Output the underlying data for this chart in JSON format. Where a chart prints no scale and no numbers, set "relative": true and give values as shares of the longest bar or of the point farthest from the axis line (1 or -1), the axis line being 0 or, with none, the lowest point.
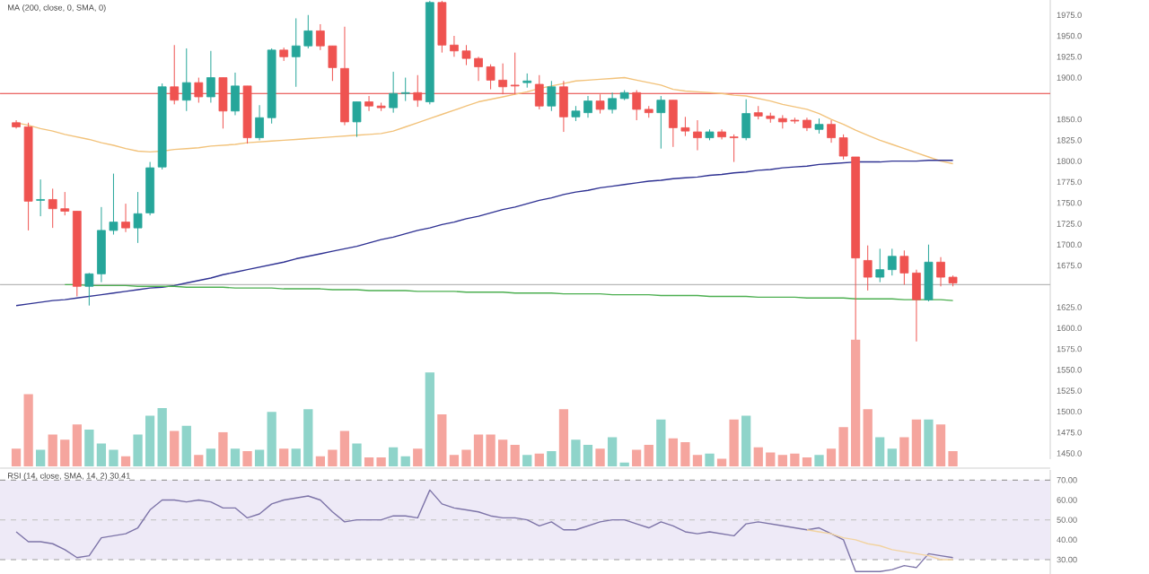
{
  "chart_data": [
    {
      "type": "candlestick",
      "title": "MA (200, close, 0, SMA, 0)",
      "tick_labels": "y",
      "categories": [
        null,
        null,
        null,
        null,
        null,
        null,
        null,
        null,
        null,
        null,
        null,
        null,
        null,
        null,
        null,
        null,
        null,
        null,
        null,
        null,
        null,
        null,
        null,
        null,
        null,
        null,
        null,
        null,
        null,
        null,
        null,
        null,
        null,
        null,
        null,
        null,
        null,
        null,
        null,
        null,
        null,
        null,
        null,
        null,
        null,
        null,
        null,
        null,
        null,
        null,
        null,
        null,
        null,
        null,
        null,
        null,
        null,
        null,
        null,
        null,
        null,
        null,
        null,
        null,
        null,
        null,
        null,
        null,
        null,
        null,
        null,
        null,
        null,
        null,
        null,
        null,
        null,
        null
      ],
      "ohlc": [
        [
          1846,
          1849,
          1839,
          1841
        ],
        [
          1841,
          1846,
          1717,
          1752
        ],
        [
          1753,
          1778,
          1734,
          1754
        ],
        [
          1754,
          1767,
          1720,
          1743
        ],
        [
          1743,
          1763,
          1735,
          1740
        ],
        [
          1740,
          1740,
          1638,
          1650
        ],
        [
          1650,
          1666,
          1627,
          1665
        ],
        [
          1665,
          1745,
          1655,
          1717
        ],
        [
          1717,
          1785,
          1712,
          1727
        ],
        [
          1727,
          1749,
          1715,
          1720
        ],
        [
          1720,
          1763,
          1702,
          1737
        ],
        [
          1738,
          1799,
          1735,
          1792
        ],
        [
          1793,
          1893,
          1790,
          1889
        ],
        [
          1889,
          1939,
          1868,
          1873
        ],
        [
          1873,
          1935,
          1860,
          1894
        ],
        [
          1894,
          1900,
          1870,
          1877
        ],
        [
          1877,
          1932,
          1870,
          1900
        ],
        [
          1900,
          1900,
          1839,
          1860
        ],
        [
          1860,
          1906,
          1855,
          1890
        ],
        [
          1890,
          1890,
          1821,
          1828
        ],
        [
          1828,
          1867,
          1825,
          1852
        ],
        [
          1852,
          1935,
          1845,
          1933
        ],
        [
          1933,
          1936,
          1920,
          1925
        ],
        [
          1925,
          1971,
          1889,
          1938
        ],
        [
          1938,
          1975,
          1935,
          1956
        ],
        [
          1956,
          1964,
          1933,
          1938
        ],
        [
          1938,
          1938,
          1896,
          1912
        ],
        [
          1911,
          1961,
          1843,
          1847
        ],
        [
          1847,
          1871,
          1829,
          1871
        ],
        [
          1871,
          1878,
          1860,
          1866
        ],
        [
          1866,
          1870,
          1860,
          1864
        ],
        [
          1864,
          1907,
          1858,
          1881
        ],
        [
          1881,
          1900,
          1872,
          1882
        ],
        [
          1882,
          1903,
          1865,
          1873
        ],
        [
          1871,
          1992,
          1868,
          1990
        ],
        [
          1990,
          1992,
          1930,
          1939
        ],
        [
          1939,
          1950,
          1925,
          1932
        ],
        [
          1932,
          1939,
          1915,
          1923
        ],
        [
          1923,
          1925,
          1896,
          1913
        ],
        [
          1913,
          1916,
          1886,
          1897
        ],
        [
          1897,
          1917,
          1880,
          1889
        ],
        [
          1891,
          1930,
          1880,
          1890
        ],
        [
          1894,
          1905,
          1888,
          1896
        ],
        [
          1892,
          1903,
          1862,
          1866
        ],
        [
          1866,
          1896,
          1860,
          1889
        ],
        [
          1889,
          1896,
          1835,
          1853
        ],
        [
          1853,
          1866,
          1848,
          1860
        ],
        [
          1858,
          1878,
          1852,
          1872
        ],
        [
          1872,
          1880,
          1857,
          1862
        ],
        [
          1862,
          1882,
          1857,
          1875
        ],
        [
          1875,
          1885,
          1873,
          1882
        ],
        [
          1882,
          1885,
          1849,
          1862
        ],
        [
          1862,
          1866,
          1852,
          1858
        ],
        [
          1858,
          1878,
          1815,
          1873
        ],
        [
          1873,
          1873,
          1817,
          1840
        ],
        [
          1840,
          1853,
          1830,
          1836
        ],
        [
          1835,
          1849,
          1813,
          1828
        ],
        [
          1828,
          1838,
          1825,
          1835
        ],
        [
          1835,
          1838,
          1826,
          1829
        ],
        [
          1829,
          1832,
          1799,
          1828
        ],
        [
          1828,
          1874,
          1825,
          1857
        ],
        [
          1858,
          1866,
          1850,
          1854
        ],
        [
          1854,
          1858,
          1846,
          1851
        ],
        [
          1851,
          1855,
          1839,
          1847
        ],
        [
          1849,
          1852,
          1845,
          1848
        ],
        [
          1849,
          1852,
          1836,
          1840
        ],
        [
          1838,
          1851,
          1833,
          1844
        ],
        [
          1844,
          1849,
          1822,
          1828
        ],
        [
          1828,
          1832,
          1802,
          1806
        ],
        [
          1805,
          1805,
          1580,
          1684
        ],
        [
          1681,
          1699,
          1645,
          1661
        ],
        [
          1661,
          1695,
          1655,
          1670
        ],
        [
          1670,
          1695,
          1663,
          1686
        ],
        [
          1686,
          1693,
          1652,
          1666
        ],
        [
          1666,
          1670,
          1584,
          1634
        ],
        [
          1634,
          1700,
          1632,
          1679
        ],
        [
          1679,
          1685,
          1650,
          1661
        ],
        [
          1661,
          1663,
          1650,
          1654
        ]
      ],
      "ylim": [
        1443,
        1993
      ],
      "yticks": [
        {
          "value": 1450,
          "label": "1450.0"
        },
        {
          "value": 1475,
          "label": "1475.0"
        },
        {
          "value": 1500,
          "label": "1500.0"
        },
        {
          "value": 1525,
          "label": "1525.0"
        },
        {
          "value": 1550,
          "label": "1550.0"
        },
        {
          "value": 1575,
          "label": "1575.0"
        },
        {
          "value": 1600,
          "label": "1600.0"
        },
        {
          "value": 1625,
          "label": "1625.0"
        },
        {
          "value": 1675,
          "label": "1675.0"
        },
        {
          "value": 1700,
          "label": "1700.0"
        },
        {
          "value": 1725,
          "label": "1725.0"
        },
        {
          "value": 1750,
          "label": "1750.0"
        },
        {
          "value": 1775,
          "label": "1775.0"
        },
        {
          "value": 1800,
          "label": "1800.0"
        },
        {
          "value": 1825,
          "label": "1825.0"
        },
        {
          "value": 1850,
          "label": "1850.0"
        },
        {
          "value": 1900,
          "label": "1900.0"
        },
        {
          "value": 1925,
          "label": "1925.0"
        },
        {
          "value": 1950,
          "label": "1950.0"
        },
        {
          "value": 1975,
          "label": "1975.0"
        }
      ],
      "series": [
        {
          "type": "line",
          "color": "#f2c27a",
          "values": [
            1846,
            1843,
            1839,
            1836,
            1832,
            1829,
            1826,
            1822,
            1819,
            1815,
            1812,
            1811,
            1812,
            1814,
            1815,
            1816,
            1818,
            1819,
            1820,
            1822,
            1823,
            1824,
            1825,
            1826,
            1827,
            1828,
            1829,
            1830,
            1831,
            1832,
            1833,
            1836,
            1841,
            1846,
            1851,
            1856,
            1861,
            1866,
            1871,
            1874,
            1877,
            1880,
            1883,
            1887,
            1890,
            1893,
            1896,
            1897,
            1898,
            1899,
            1900,
            1897,
            1894,
            1891,
            1886,
            1884,
            1883,
            1882,
            1881,
            1879,
            1878,
            1875,
            1872,
            1868,
            1865,
            1862,
            1857,
            1850,
            1844,
            1837,
            1831,
            1825,
            1820,
            1815,
            1810,
            1805,
            1800,
            1797
          ]
        },
        {
          "type": "line",
          "color": "#2e3192",
          "values": [
            1627,
            1629,
            1631,
            1633,
            1634,
            1636,
            1638,
            1640,
            1642,
            1644,
            1646,
            1648,
            1649,
            1651,
            1654,
            1657,
            1660,
            1664,
            1667,
            1670,
            1673,
            1676,
            1679,
            1683,
            1686,
            1689,
            1692,
            1695,
            1698,
            1702,
            1706,
            1709,
            1713,
            1717,
            1720,
            1724,
            1727,
            1731,
            1734,
            1738,
            1742,
            1745,
            1749,
            1753,
            1756,
            1760,
            1763,
            1765,
            1768,
            1770,
            1772,
            1774,
            1776,
            1777,
            1779,
            1780,
            1781,
            1783,
            1784,
            1786,
            1787,
            1789,
            1790,
            1792,
            1793,
            1794,
            1796,
            1797,
            1798,
            1799,
            1799,
            1799,
            1800,
            1800,
            1800,
            1801,
            1801,
            1801
          ]
        },
        {
          "type": "line",
          "color": "#4caf50",
          "values": [
            null,
            null,
            null,
            null,
            1652,
            1652,
            1651,
            1651,
            1651,
            1651,
            1650,
            1650,
            1650,
            1650,
            1649,
            1649,
            1649,
            1649,
            1648,
            1648,
            1648,
            1648,
            1647,
            1647,
            1647,
            1647,
            1646,
            1646,
            1646,
            1645,
            1645,
            1645,
            1645,
            1644,
            1644,
            1644,
            1644,
            1643,
            1643,
            1643,
            1643,
            1642,
            1642,
            1642,
            1642,
            1641,
            1641,
            1641,
            1641,
            1640,
            1640,
            1640,
            1640,
            1639,
            1639,
            1639,
            1639,
            1638,
            1638,
            1638,
            1638,
            1637,
            1637,
            1637,
            1637,
            1636,
            1636,
            1636,
            1636,
            1635,
            1635,
            1635,
            1635,
            1634,
            1634,
            1634,
            1634,
            1633
          ]
        }
      ],
      "ref_lines": [
        {
          "axis": "y",
          "value": 1881,
          "color": "#e53935"
        },
        {
          "axis": "y",
          "value": 1652,
          "color": "#b8b8b8"
        }
      ]
    },
    {
      "type": "bar",
      "relative": true,
      "categories": [
        null,
        null,
        null,
        null,
        null,
        null,
        null,
        null,
        null,
        null,
        null,
        null,
        null,
        null,
        null,
        null,
        null,
        null,
        null,
        null,
        null,
        null,
        null,
        null,
        null,
        null,
        null,
        null,
        null,
        null,
        null,
        null,
        null,
        null,
        null,
        null,
        null,
        null,
        null,
        null,
        null,
        null,
        null,
        null,
        null,
        null,
        null,
        null,
        null,
        null,
        null,
        null,
        null,
        null,
        null,
        null,
        null,
        null,
        null,
        null,
        null,
        null,
        null,
        null,
        null,
        null,
        null,
        null,
        null,
        null,
        null,
        null,
        null,
        null,
        null,
        null,
        null,
        null
      ],
      "values": [
        0.14,
        0.57,
        0.13,
        0.25,
        0.21,
        0.33,
        0.29,
        0.18,
        0.13,
        0.08,
        0.25,
        0.4,
        0.46,
        0.28,
        0.32,
        0.09,
        0.14,
        0.27,
        0.14,
        0.12,
        0.13,
        0.43,
        0.14,
        0.14,
        0.45,
        0.08,
        0.13,
        0.28,
        0.18,
        0.07,
        0.07,
        0.15,
        0.08,
        0.14,
        0.74,
        0.41,
        0.09,
        0.13,
        0.25,
        0.25,
        0.21,
        0.17,
        0.09,
        0.1,
        0.12,
        0.45,
        0.21,
        0.17,
        0.14,
        0.23,
        0.03,
        0.13,
        0.17,
        0.37,
        0.22,
        0.19,
        0.09,
        0.1,
        0.06,
        0.37,
        0.4,
        0.15,
        0.11,
        0.09,
        0.1,
        0.07,
        0.09,
        0.14,
        0.31,
        1,
        0.45,
        0.23,
        0.14,
        0.23,
        0.37,
        0.37,
        0.33,
        0.12
      ],
      "colors": [
        "#f5a59e",
        "#f5a59e",
        "#8fd4ca",
        "#f5a59e",
        "#f5a59e",
        "#f5a59e",
        "#8fd4ca",
        "#8fd4ca",
        "#8fd4ca",
        "#f5a59e",
        "#8fd4ca",
        "#8fd4ca",
        "#8fd4ca",
        "#f5a59e",
        "#8fd4ca",
        "#f5a59e",
        "#8fd4ca",
        "#f5a59e",
        "#8fd4ca",
        "#f5a59e",
        "#8fd4ca",
        "#8fd4ca",
        "#f5a59e",
        "#8fd4ca",
        "#8fd4ca",
        "#f5a59e",
        "#f5a59e",
        "#f5a59e",
        "#8fd4ca",
        "#f5a59e",
        "#f5a59e",
        "#8fd4ca",
        "#8fd4ca",
        "#f5a59e",
        "#8fd4ca",
        "#f5a59e",
        "#f5a59e",
        "#f5a59e",
        "#f5a59e",
        "#f5a59e",
        "#f5a59e",
        "#f5a59e",
        "#8fd4ca",
        "#f5a59e",
        "#8fd4ca",
        "#f5a59e",
        "#8fd4ca",
        "#8fd4ca",
        "#f5a59e",
        "#8fd4ca",
        "#8fd4ca",
        "#f5a59e",
        "#f5a59e",
        "#8fd4ca",
        "#f5a59e",
        "#f5a59e",
        "#f5a59e",
        "#8fd4ca",
        "#f5a59e",
        "#f5a59e",
        "#8fd4ca",
        "#f5a59e",
        "#f5a59e",
        "#f5a59e",
        "#f5a59e",
        "#f5a59e",
        "#8fd4ca",
        "#f5a59e",
        "#f5a59e",
        "#f5a59e",
        "#f5a59e",
        "#8fd4ca",
        "#8fd4ca",
        "#f5a59e",
        "#f5a59e",
        "#8fd4ca",
        "#f5a59e",
        "#f5a59e"
      ]
    },
    {
      "type": "line",
      "title": "RSI (14, close, SMA, 14, 2)  30.41",
      "tick_labels": "y",
      "categories": [
        null,
        null,
        null,
        null,
        null,
        null,
        null,
        null,
        null,
        null,
        null,
        null,
        null,
        null,
        null,
        null,
        null,
        null,
        null,
        null,
        null,
        null,
        null,
        null,
        null,
        null,
        null,
        null,
        null,
        null,
        null,
        null,
        null,
        null,
        null,
        null,
        null,
        null,
        null,
        null,
        null,
        null,
        null,
        null,
        null,
        null,
        null,
        null,
        null,
        null,
        null,
        null,
        null,
        null,
        null,
        null,
        null,
        null,
        null,
        null,
        null,
        null,
        null,
        null,
        null,
        null,
        null,
        null,
        null,
        null,
        null,
        null,
        null,
        null,
        null,
        null,
        null,
        null
      ],
      "ylim": [
        22.8,
        75.1
      ],
      "yticks": [
        {
          "value": 30,
          "label": "30.00"
        },
        {
          "value": 40,
          "label": "40.00"
        },
        {
          "value": 50,
          "label": "50.00"
        },
        {
          "value": 60,
          "label": "60.00"
        },
        {
          "value": 70,
          "label": "70.00"
        }
      ],
      "series": [
        {
          "color": "#7d74a8",
          "values": [
            44,
            39,
            39,
            38,
            35,
            31,
            32,
            41,
            42,
            43,
            46,
            55,
            60,
            60,
            59,
            60,
            59,
            56,
            56,
            51,
            53,
            58,
            60,
            61,
            62,
            60,
            54,
            49,
            50,
            50,
            50,
            52,
            52,
            51,
            65,
            58,
            56,
            55,
            54,
            52,
            51,
            51,
            50,
            47,
            49,
            45,
            45,
            47,
            49,
            50,
            50,
            48,
            46,
            49,
            47,
            44,
            43,
            44,
            43,
            42,
            48,
            49,
            48,
            47,
            46,
            45,
            46,
            43,
            40,
            24,
            24,
            24,
            25,
            27,
            26,
            33,
            32,
            31
          ]
        },
        {
          "color": "#f2d3a0",
          "values": [
            null,
            null,
            null,
            null,
            null,
            null,
            null,
            null,
            null,
            null,
            null,
            null,
            null,
            null,
            null,
            null,
            null,
            null,
            null,
            null,
            null,
            null,
            null,
            null,
            null,
            null,
            null,
            null,
            null,
            null,
            null,
            null,
            null,
            null,
            null,
            null,
            null,
            null,
            null,
            null,
            null,
            null,
            null,
            null,
            null,
            null,
            null,
            null,
            null,
            null,
            null,
            null,
            null,
            null,
            null,
            null,
            null,
            null,
            null,
            null,
            null,
            null,
            null,
            null,
            null,
            45,
            44,
            43,
            41,
            40,
            38,
            37,
            35,
            34,
            33,
            32,
            30,
            30
          ]
        }
      ],
      "ref_lines": [
        {
          "axis": "y",
          "value": 70,
          "color": "#9e9e9e",
          "line_style": "dashed"
        },
        {
          "axis": "y",
          "value": 50,
          "color": "#c8c8c8",
          "line_style": "dashed"
        },
        {
          "axis": "y",
          "value": 30,
          "color": "#9e9e9e",
          "line_style": "dashed"
        }
      ],
      "bands": [
        {
          "axis": "y",
          "from": 30,
          "to": 70,
          "color": "#eeeaf7"
        }
      ]
    }
  ]
}
